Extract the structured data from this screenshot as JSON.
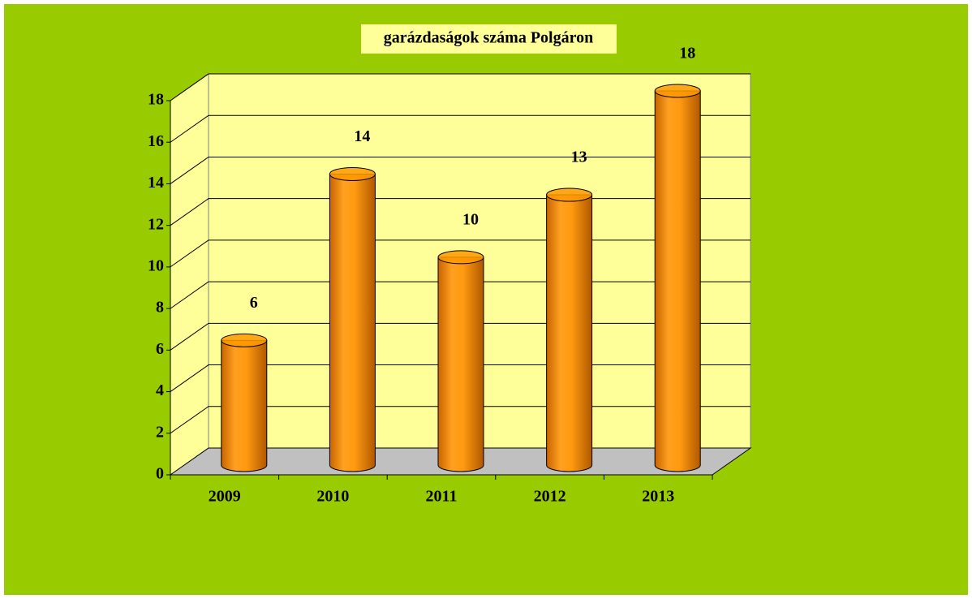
{
  "chart_data": {
    "type": "bar",
    "title": "garázdaságok száma Polgáron",
    "categories": [
      "2009",
      "2010",
      "2011",
      "2012",
      "2013"
    ],
    "values": [
      6,
      14,
      10,
      13,
      18
    ],
    "color": "#ff9900",
    "ylim": [
      0,
      18
    ],
    "yticks": [
      0,
      2,
      4,
      6,
      8,
      10,
      12,
      14,
      16,
      18
    ],
    "grid": true
  }
}
